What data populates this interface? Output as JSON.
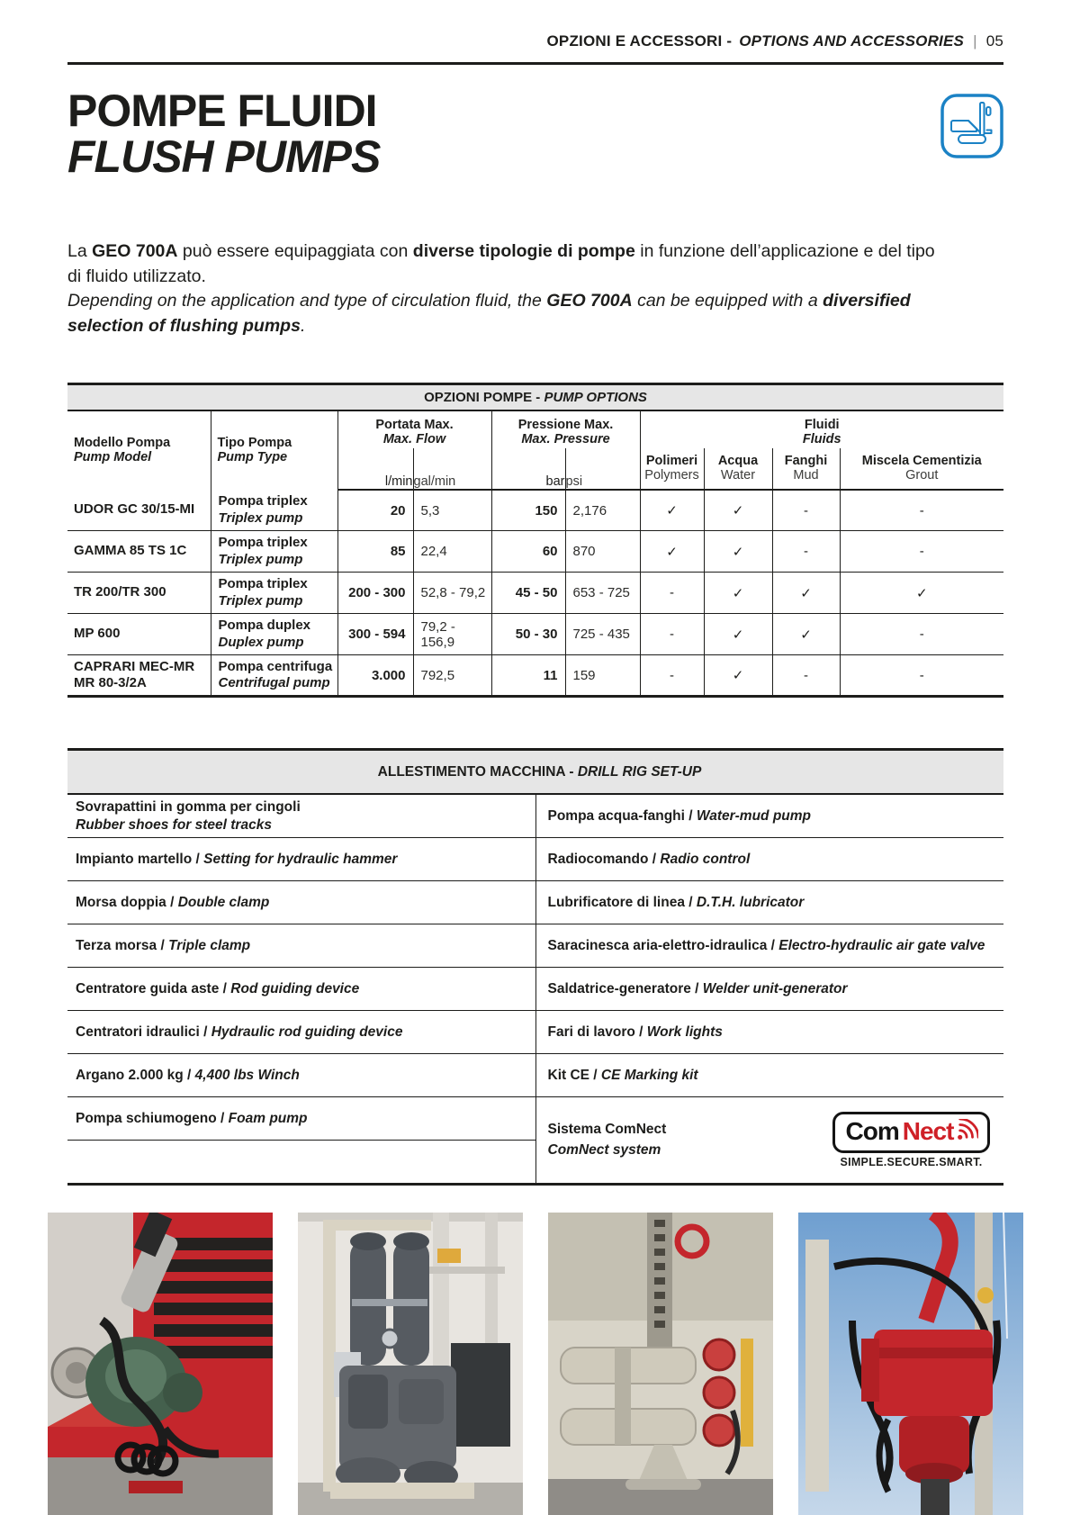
{
  "header": {
    "section_it": "OPZIONI E ACCESSORI - ",
    "section_en": "OPTIONS AND ACCESSORIES",
    "separator": "|",
    "page_number": "05"
  },
  "title": {
    "it": "POMPE FLUIDI",
    "en": "FLUSH PUMPS"
  },
  "icons": {
    "section_icon": "drill-rig-icon",
    "section_icon_color": "#1b82c5",
    "comnect_signal_icon": "radio-signal-icon"
  },
  "intro": {
    "it": [
      {
        "t": "La "
      },
      {
        "t": "GEO 700A",
        "b": true
      },
      {
        "t": " può essere equipaggiata con "
      },
      {
        "t": "diverse tipologie di pompe",
        "b": true
      },
      {
        "t": " in funzione dell’applicazione e del tipo"
      },
      {
        "br": true
      },
      {
        "t": "di fluido utilizzato."
      }
    ],
    "en": [
      {
        "t": "Depending on the application and type of circulation fluid, the ",
        "i": true
      },
      {
        "t": "GEO 700A",
        "b": true,
        "i": true
      },
      {
        "t": " can be equipped with a ",
        "i": true
      },
      {
        "t": "diversified",
        "b": true,
        "i": true
      },
      {
        "br": true
      },
      {
        "t": "selection of flushing pumps",
        "b": true,
        "i": true
      },
      {
        "t": ".",
        "i": true
      }
    ]
  },
  "pump_table": {
    "title_it": "OPZIONI POMPE - ",
    "title_en": "PUMP OPTIONS",
    "headers": {
      "model_it": "Modello Pompa",
      "model_en": "Pump Model",
      "type_it": "Tipo Pompa",
      "type_en": "Pump Type",
      "flow_it": "Portata Max.",
      "flow_en": "Max. Flow",
      "pressure_it": "Pressione Max.",
      "pressure_en": "Max. Pressure",
      "fluids_it": "Fluidi",
      "fluids_en": "Fluids",
      "unit_lmin": "l/min",
      "unit_galmin": "gal/min",
      "unit_bar": "bar",
      "unit_psi": "psi",
      "polymers_it": "Polimeri",
      "polymers_en": "Polymers",
      "water_it": "Acqua",
      "water_en": "Water",
      "mud_it": "Fanghi",
      "mud_en": "Mud",
      "grout_it": "Miscela Cementizia",
      "grout_en": "Grout"
    },
    "rows": [
      {
        "model": "UDOR GC 30/15-MI",
        "model2": "",
        "type_it": "Pompa triplex",
        "type_en": "Triplex pump",
        "lmin": "20",
        "galmin": "5,3",
        "bar": "150",
        "psi": "2,176",
        "fluids": [
          "✓",
          "✓",
          "-",
          "-"
        ]
      },
      {
        "model": "GAMMA 85 TS 1C",
        "model2": "",
        "type_it": "Pompa triplex",
        "type_en": "Triplex pump",
        "lmin": "85",
        "galmin": "22,4",
        "bar": "60",
        "psi": "870",
        "fluids": [
          "✓",
          "✓",
          "-",
          "-"
        ]
      },
      {
        "model": "TR 200/TR 300",
        "model2": "",
        "type_it": "Pompa triplex",
        "type_en": "Triplex pump",
        "lmin": "200 - 300",
        "galmin": "52,8 - 79,2",
        "bar": "45 - 50",
        "psi": "653 - 725",
        "fluids": [
          "-",
          "✓",
          "✓",
          "✓"
        ]
      },
      {
        "model": "MP 600",
        "model2": "",
        "type_it": "Pompa duplex",
        "type_en": "Duplex pump",
        "lmin": "300 - 594",
        "galmin": "79,2 - 156,9",
        "bar": "50 - 30",
        "psi": "725 - 435",
        "fluids": [
          "-",
          "✓",
          "✓",
          "-"
        ]
      },
      {
        "model": "CAPRARI MEC-MR",
        "model2": "MR 80-3/2A",
        "type_it": "Pompa centrifuga",
        "type_en": "Centrifugal pump",
        "lmin": "3.000",
        "galmin": "792,5",
        "bar": "11",
        "psi": "159",
        "fluids": [
          "-",
          "✓",
          "-",
          "-"
        ]
      }
    ]
  },
  "setup_table": {
    "title_it": "ALLESTIMENTO MACCHINA - ",
    "title_en": "DRILL RIG SET-UP",
    "left": [
      {
        "it": "Sovrapattini in gomma per cingoli",
        "sep": "",
        "en": "Rubber shoes for steel tracks"
      },
      {
        "it": "Impianto martello",
        "sep": " / ",
        "en": "Setting for hydraulic hammer"
      },
      {
        "it": "Morsa doppia",
        "sep": " / ",
        "en": "Double clamp"
      },
      {
        "it": "Terza morsa",
        "sep": " / ",
        "en": "Triple clamp"
      },
      {
        "it": "Centratore guida aste",
        "sep": " / ",
        "en": "Rod guiding device"
      },
      {
        "it": "Centratori idraulici",
        "sep": " / ",
        "en": "Hydraulic rod guiding device"
      },
      {
        "it": "Argano 2.000 kg",
        "sep": " / ",
        "en": "4,400 lbs Winch"
      },
      {
        "it": "Pompa schiumogeno",
        "sep": " / ",
        "en": "Foam pump"
      }
    ],
    "right": [
      {
        "it": "Pompa acqua-fanghi",
        "sep": " / ",
        "en": "Water-mud pump"
      },
      {
        "it": "Radiocomando",
        "sep": " / ",
        "en": "Radio control"
      },
      {
        "it": "Lubrificatore di linea",
        "sep": " / ",
        "en": "D.T.H. lubricator"
      },
      {
        "it": "Saracinesca aria-elettro-idraulica",
        "sep": " / ",
        "en": "Electro-hydraulic air gate valve"
      },
      {
        "it": "Saldatrice-generatore",
        "sep": " / ",
        "en": "Welder unit-generator"
      },
      {
        "it": "Fari di lavoro",
        "sep": " / ",
        "en": "Work lights"
      },
      {
        "it": "Kit CE",
        "sep": " / ",
        "en": "CE Marking kit"
      }
    ],
    "comnect": {
      "it": "Sistema ComNect",
      "en": "ComNect system",
      "logo_com": "Com",
      "logo_nect": "Nect",
      "tagline": "SIMPLE.SECURE.SMART.",
      "red": "#cf2027"
    }
  },
  "photos": [
    {
      "name": "photo-water-mud-pump-on-rig"
    },
    {
      "name": "photo-duplex-pump-workshop"
    },
    {
      "name": "photo-rig-clamps-red-caps"
    },
    {
      "name": "photo-rotary-head-sky"
    }
  ]
}
